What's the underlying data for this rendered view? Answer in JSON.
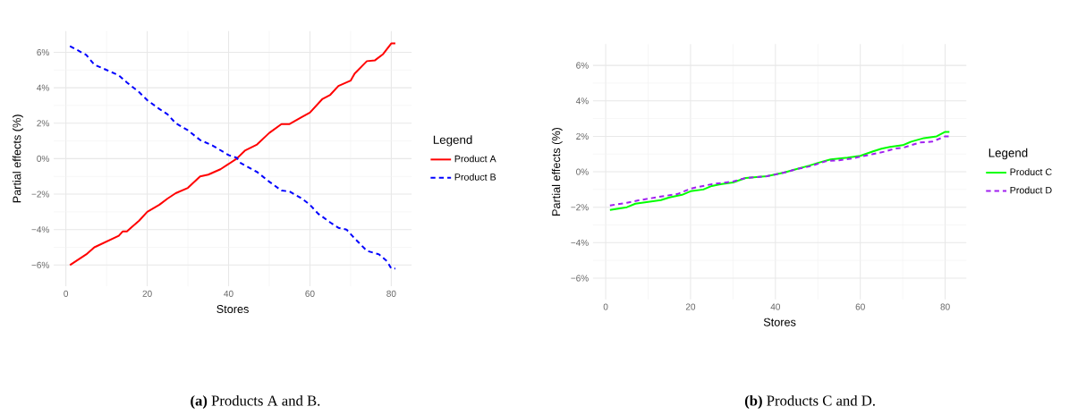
{
  "chart_data": [
    {
      "type": "line",
      "xlabel": "Stores",
      "ylabel": "Partial effects (%)",
      "legend_title": "Legend",
      "legend": "right",
      "grid": true,
      "xlim": [
        -3,
        85
      ],
      "ylim": [
        -7.2,
        7.2
      ],
      "xticks": [
        0,
        20,
        40,
        60,
        80
      ],
      "yticks": [
        {
          "value": -6,
          "label": "−6%"
        },
        {
          "value": -4,
          "label": "−4%"
        },
        {
          "value": -2,
          "label": "−2%"
        },
        {
          "value": 0,
          "label": "0%"
        },
        {
          "value": 2,
          "label": "2%"
        },
        {
          "value": 4,
          "label": "4%"
        },
        {
          "value": 6,
          "label": "6%"
        }
      ],
      "annotations": [
        "**(a)** Products A and B."
      ],
      "series": [
        {
          "name": "Product A",
          "color": "#ff0000",
          "line_style": "solid",
          "x": [
            1,
            5,
            7,
            13,
            14,
            15,
            18,
            20,
            23,
            25,
            27,
            30,
            33,
            35,
            38,
            42,
            44,
            47,
            50,
            53,
            55,
            58,
            60,
            63,
            65,
            67,
            70,
            71,
            74,
            76,
            78,
            80,
            81
          ],
          "values": [
            -6.0,
            -5.4,
            -5.0,
            -4.35,
            -4.1,
            -4.1,
            -3.5,
            -3.0,
            -2.6,
            -2.25,
            -1.95,
            -1.65,
            -1.0,
            -0.9,
            -0.6,
            0.0,
            0.45,
            0.8,
            1.45,
            1.95,
            1.95,
            2.35,
            2.6,
            3.35,
            3.6,
            4.1,
            4.4,
            4.8,
            5.5,
            5.55,
            5.9,
            6.5,
            6.5
          ]
        },
        {
          "name": "Product B",
          "color": "#0000ff",
          "line_style": "dashed",
          "x": [
            1,
            5,
            7,
            10,
            13,
            15,
            18,
            20,
            23,
            25,
            27,
            30,
            33,
            36,
            40,
            42,
            43,
            47,
            50,
            53,
            55,
            58,
            60,
            62,
            65,
            67,
            69,
            71,
            74,
            77,
            79,
            80,
            81
          ],
          "values": [
            6.35,
            5.85,
            5.3,
            5.0,
            4.7,
            4.3,
            3.75,
            3.3,
            2.8,
            2.5,
            2.0,
            1.6,
            1.05,
            0.75,
            0.2,
            0.05,
            -0.25,
            -0.75,
            -1.3,
            -1.8,
            -1.85,
            -2.25,
            -2.6,
            -3.1,
            -3.6,
            -3.9,
            -4.0,
            -4.5,
            -5.2,
            -5.4,
            -5.8,
            -6.2,
            -6.2
          ]
        }
      ]
    },
    {
      "type": "line",
      "xlabel": "Stores",
      "ylabel": "Partial effects (%)",
      "legend_title": "Legend",
      "legend": "right",
      "grid": true,
      "xlim": [
        -3,
        85
      ],
      "ylim": [
        -7.2,
        7.2
      ],
      "xticks": [
        0,
        20,
        40,
        60,
        80
      ],
      "yticks": [
        {
          "value": -6,
          "label": "−6%"
        },
        {
          "value": -4,
          "label": "−4%"
        },
        {
          "value": -2,
          "label": "−2%"
        },
        {
          "value": 0,
          "label": "0%"
        },
        {
          "value": 2,
          "label": "2%"
        },
        {
          "value": 4,
          "label": "4%"
        },
        {
          "value": 6,
          "label": "6%"
        }
      ],
      "annotations": [
        "**(b)** Products C and D."
      ],
      "series": [
        {
          "name": "Product C",
          "color": "#00ff00",
          "line_style": "solid",
          "x": [
            1,
            5,
            7,
            13,
            15,
            18,
            20,
            23,
            25,
            27,
            30,
            33,
            38,
            42,
            45,
            48,
            50,
            53,
            57,
            60,
            63,
            65,
            67,
            70,
            72,
            75,
            78,
            80,
            81
          ],
          "values": [
            -2.15,
            -2.0,
            -1.8,
            -1.6,
            -1.45,
            -1.3,
            -1.1,
            -1.0,
            -0.8,
            -0.7,
            -0.6,
            -0.35,
            -0.25,
            -0.05,
            0.15,
            0.35,
            0.5,
            0.7,
            0.8,
            0.9,
            1.15,
            1.3,
            1.4,
            1.5,
            1.7,
            1.9,
            2.0,
            2.25,
            2.25
          ]
        },
        {
          "name": "Product D",
          "color": "#a020f0",
          "line_style": "dashed",
          "x": [
            1,
            5,
            8,
            13,
            17,
            20,
            25,
            30,
            33,
            38,
            42,
            45,
            48,
            52,
            55,
            58,
            60,
            63,
            66,
            68,
            70,
            74,
            77,
            80,
            81
          ],
          "values": [
            -1.9,
            -1.75,
            -1.6,
            -1.4,
            -1.25,
            -0.95,
            -0.7,
            -0.55,
            -0.35,
            -0.25,
            -0.05,
            0.15,
            0.3,
            0.6,
            0.65,
            0.75,
            0.85,
            1.0,
            1.15,
            1.3,
            1.35,
            1.65,
            1.7,
            2.0,
            2.0
          ]
        }
      ]
    }
  ]
}
